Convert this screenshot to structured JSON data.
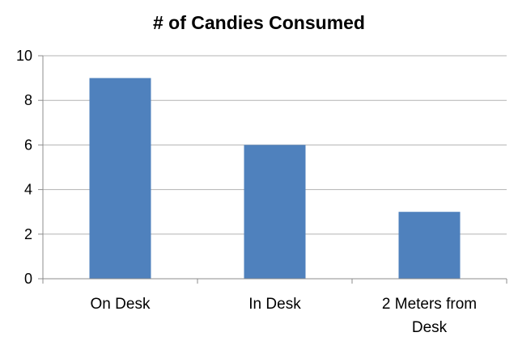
{
  "chart_data": {
    "type": "bar",
    "title": "# of Candies Consumed",
    "xlabel": "",
    "ylabel": "",
    "categories": [
      [
        "On Desk"
      ],
      [
        "In Desk"
      ],
      [
        "2 Meters from",
        "Desk"
      ]
    ],
    "values": [
      9,
      6,
      3
    ],
    "ylim": [
      0,
      10
    ],
    "yticks": [
      "0",
      "2",
      "4",
      "6",
      "8",
      "10"
    ],
    "grid": true,
    "legend": "none",
    "colors": {
      "bar": "#4f81bd"
    }
  }
}
